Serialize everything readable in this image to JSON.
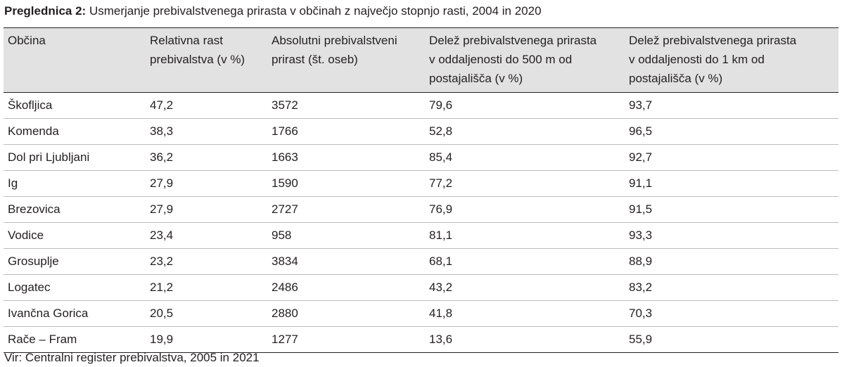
{
  "title": {
    "label": "Preglednica 2:",
    "text": "Usmerjanje prebivalstvenega prirasta v občinah z največjo stopnjo rasti, 2004 in 2020"
  },
  "table": {
    "headers": [
      [
        "Občina"
      ],
      [
        "Relativna rast",
        "prebivalstva (v %)"
      ],
      [
        "Absolutni prebivalstveni",
        "prirast (št. oseb)"
      ],
      [
        "Delež prebivalstvenega prirasta",
        "v oddaljenosti do 500 m od",
        "postajališča (v %)"
      ],
      [
        "Delež prebivalstvenega prirasta",
        "v oddaljenosti do 1 km od",
        "postajališča (v %)"
      ]
    ],
    "rows": [
      [
        "Škofljica",
        "47,2",
        "3572",
        "79,6",
        "93,7"
      ],
      [
        "Komenda",
        "38,3",
        "1766",
        "52,8",
        "96,5"
      ],
      [
        "Dol pri Ljubljani",
        "36,2",
        "1663",
        "85,4",
        "92,7"
      ],
      [
        "Ig",
        "27,9",
        "1590",
        "77,2",
        "91,1"
      ],
      [
        "Brezovica",
        "27,9",
        "2727",
        "76,9",
        "91,5"
      ],
      [
        "Vodice",
        "23,4",
        "958",
        "81,1",
        "93,3"
      ],
      [
        "Grosuplje",
        "23,2",
        "3834",
        "68,1",
        "88,9"
      ],
      [
        "Logatec",
        "21,2",
        "2486",
        "43,2",
        "83,2"
      ],
      [
        "Ivančna Gorica",
        "20,5",
        "2880",
        "41,8",
        "70,3"
      ],
      [
        "Rače – Fram",
        "19,9",
        "1277",
        "13,6",
        "55,9"
      ]
    ]
  },
  "source": "Vir: Centralni register prebivalstva, 2005 in 2021"
}
